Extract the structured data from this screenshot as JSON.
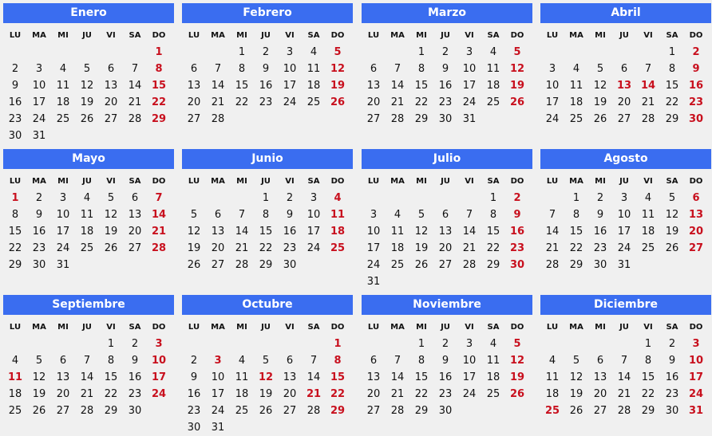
{
  "weekdays": [
    "LU",
    "MA",
    "MI",
    "JU",
    "VI",
    "SA",
    "DO"
  ],
  "colors": {
    "header_bg": "#3a6df0",
    "header_text": "#ffffff",
    "holiday": "#c8101e",
    "text": "#111111"
  },
  "months": [
    {
      "name": "Enero",
      "offset": 6,
      "days": 31,
      "holidays": []
    },
    {
      "name": "Febrero",
      "offset": 2,
      "days": 28,
      "holidays": []
    },
    {
      "name": "Marzo",
      "offset": 2,
      "days": 31,
      "holidays": []
    },
    {
      "name": "Abril",
      "offset": 5,
      "days": 30,
      "holidays": [
        13,
        14
      ]
    },
    {
      "name": "Mayo",
      "offset": 0,
      "days": 31,
      "holidays": [
        1
      ]
    },
    {
      "name": "Junio",
      "offset": 3,
      "days": 30,
      "holidays": []
    },
    {
      "name": "Julio",
      "offset": 5,
      "days": 31,
      "holidays": []
    },
    {
      "name": "Agosto",
      "offset": 1,
      "days": 31,
      "holidays": []
    },
    {
      "name": "Septiembre",
      "offset": 4,
      "days": 30,
      "holidays": [
        11
      ]
    },
    {
      "name": "Octubre",
      "offset": 6,
      "days": 31,
      "holidays": [
        3,
        12,
        21
      ]
    },
    {
      "name": "Noviembre",
      "offset": 2,
      "days": 30,
      "holidays": []
    },
    {
      "name": "Diciembre",
      "offset": 4,
      "days": 31,
      "holidays": [
        3,
        25
      ]
    }
  ]
}
